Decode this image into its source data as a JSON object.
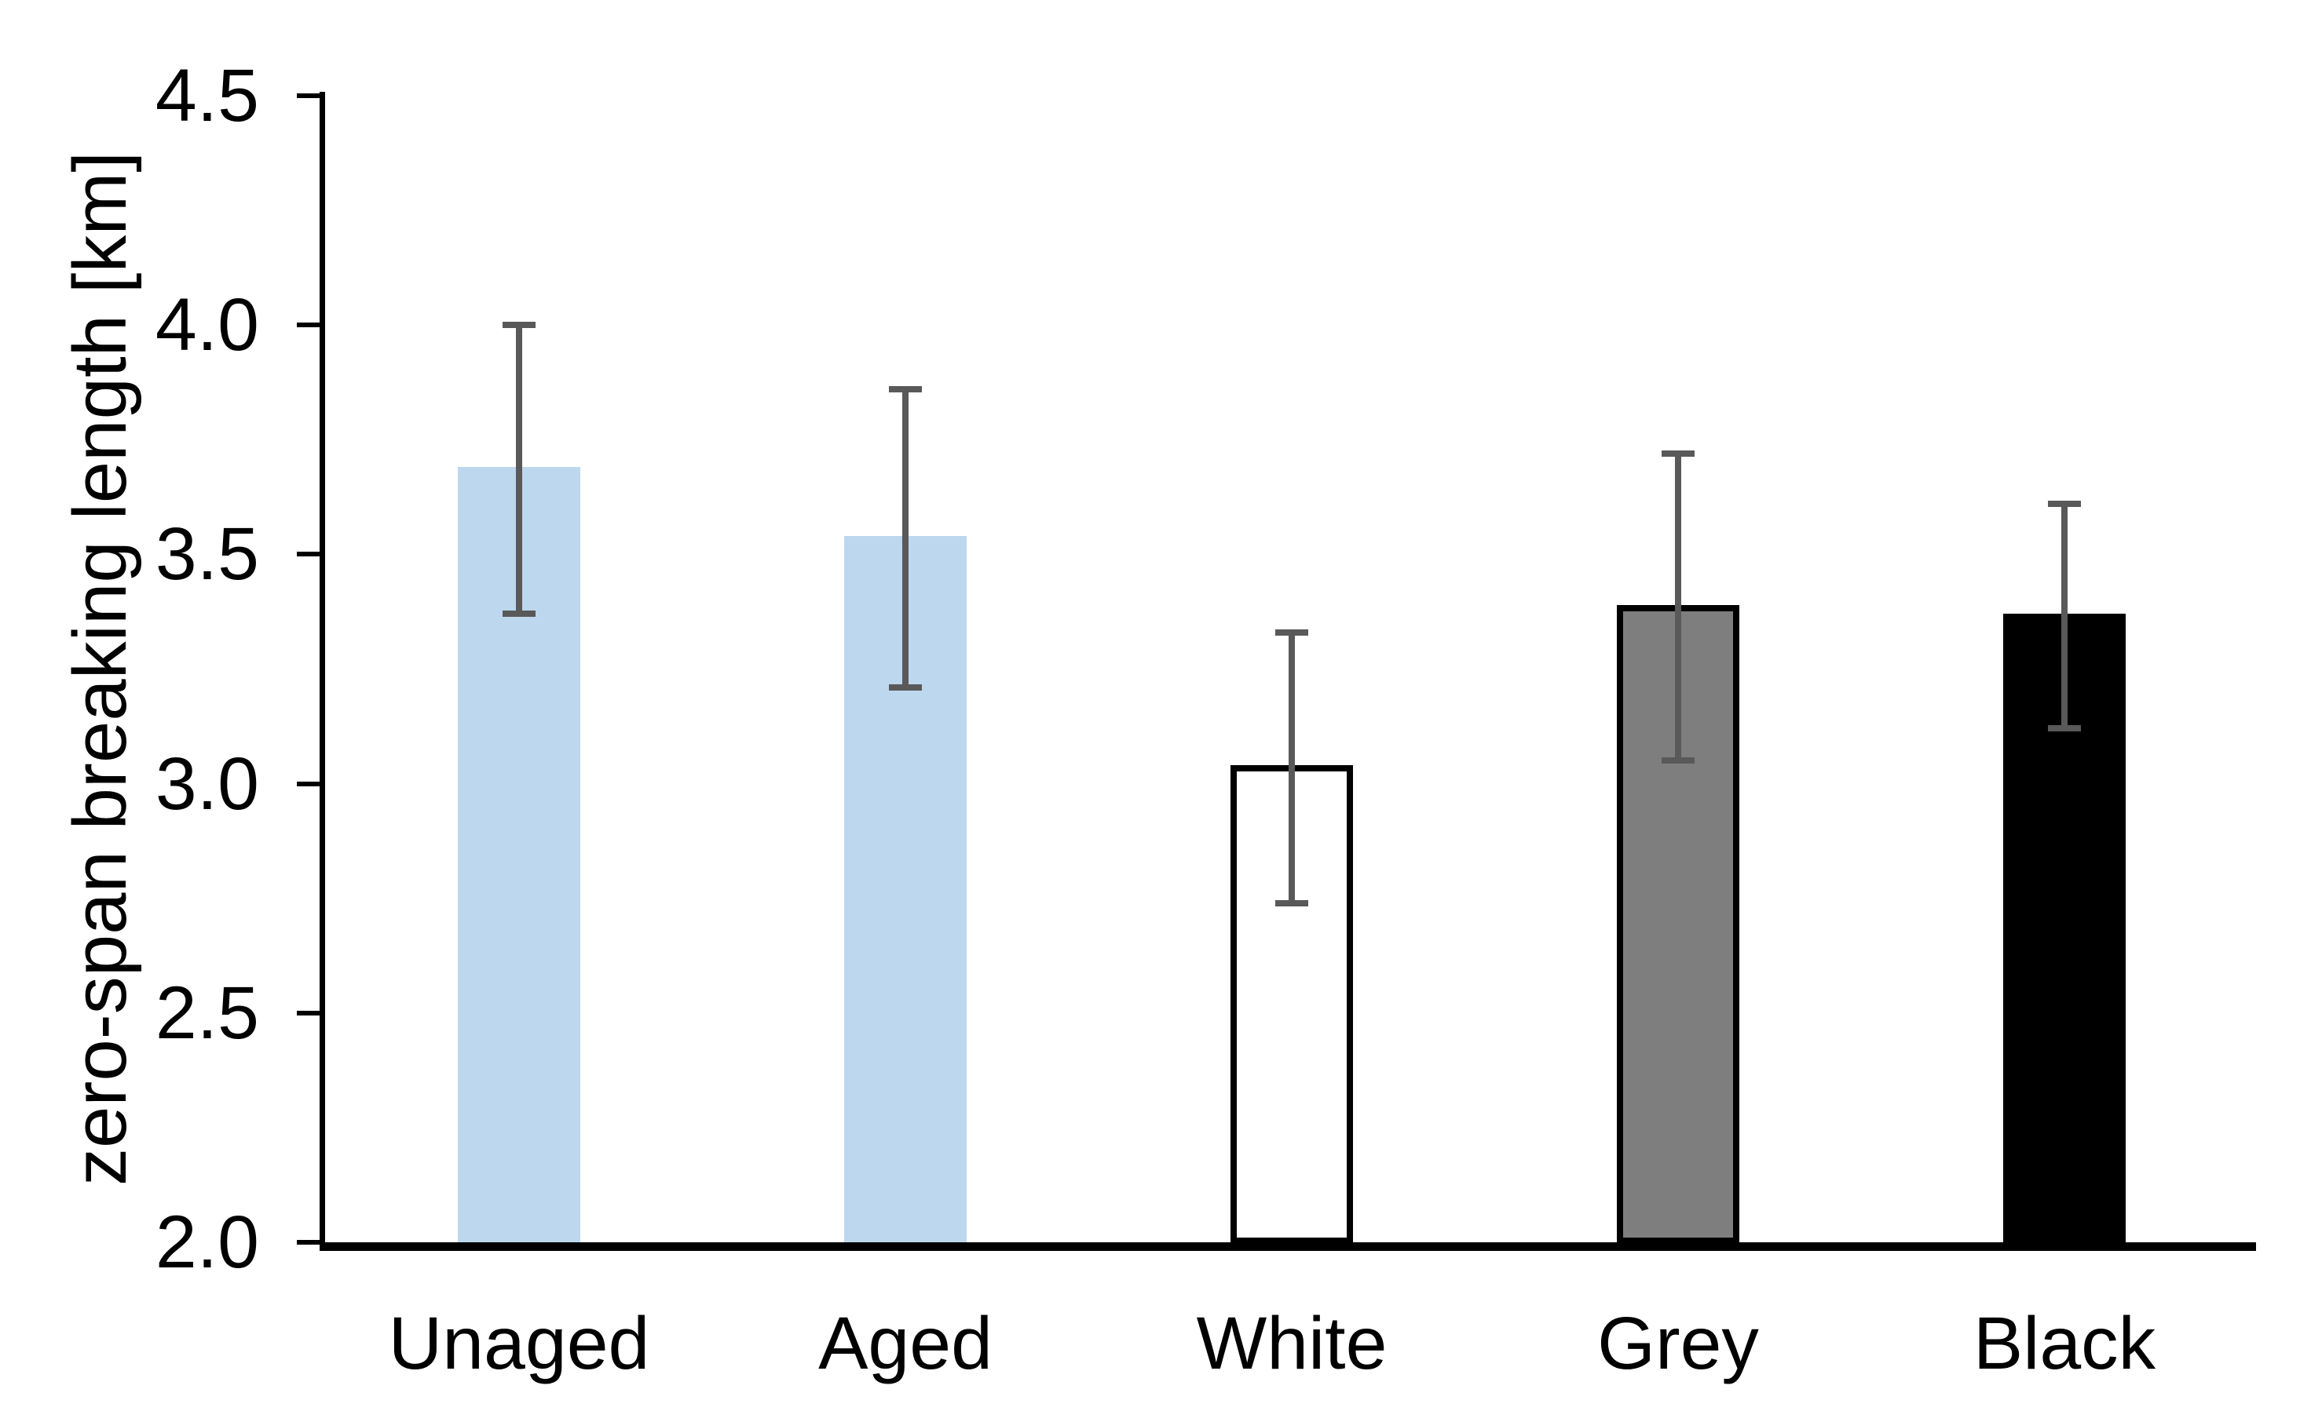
{
  "chart_data": {
    "type": "bar",
    "title": "",
    "xlabel": "",
    "ylabel": "zero-span breaking length [km]",
    "categories": [
      "Unaged",
      "Aged",
      "White",
      "Grey",
      "Black"
    ],
    "values": [
      3.69,
      3.54,
      3.04,
      3.39,
      3.37
    ],
    "error_bars": {
      "upper": [
        4.0,
        3.86,
        3.33,
        3.72,
        3.61
      ],
      "lower": [
        3.37,
        3.21,
        2.74,
        3.05,
        3.12
      ]
    },
    "ylim": [
      2.0,
      4.5
    ],
    "ytick_labels": [
      "2.0",
      "2.5",
      "3.0",
      "3.5",
      "4.0",
      "4.5"
    ],
    "ytick_values": [
      2.0,
      2.5,
      3.0,
      3.5,
      4.0,
      4.5
    ],
    "grid": false,
    "legend": "none",
    "bar_styles": [
      {
        "name": "light-blue-bar",
        "fill": "#BDD7EE",
        "border": "none"
      },
      {
        "name": "light-blue-bar",
        "fill": "#BDD7EE",
        "border": "none"
      },
      {
        "name": "white-bar",
        "fill": "#FFFFFF",
        "border": "#000000"
      },
      {
        "name": "grey-bar",
        "fill": "#7E7E7E",
        "border": "#000000"
      },
      {
        "name": "black-bar",
        "fill": "#000000",
        "border": "none"
      }
    ],
    "error_bar_color": "#595959",
    "axis_color": "#000000",
    "background_color": "#FFFFFF"
  }
}
